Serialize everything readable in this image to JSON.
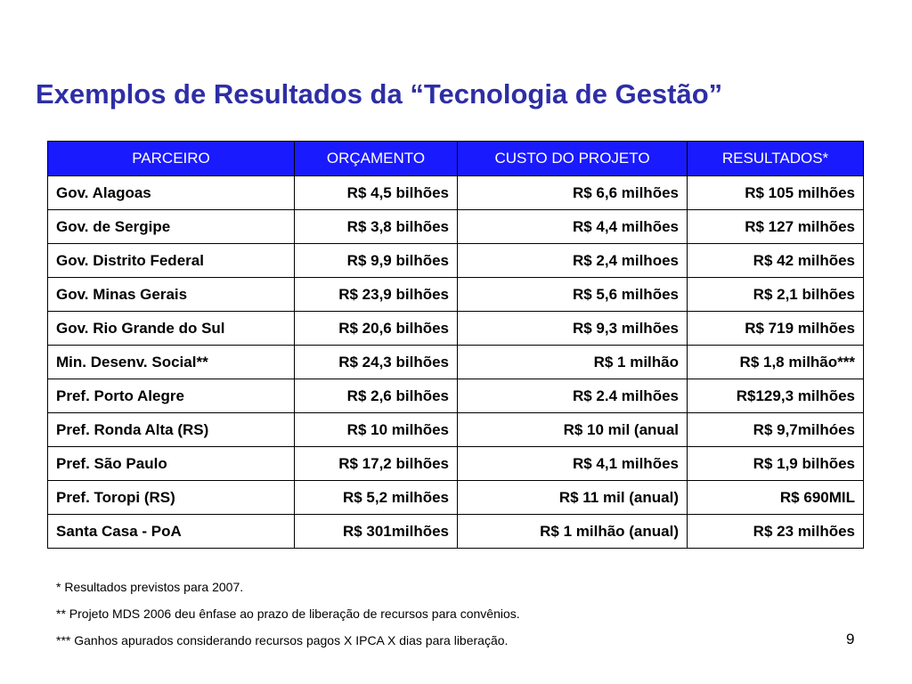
{
  "slide": {
    "title": "Exemplos de Resultados da “Tecnologia de Gestão”",
    "page_number": "9"
  },
  "table": {
    "headers": [
      "PARCEIRO",
      "ORÇAMENTO",
      "CUSTO DO PROJETO",
      "RESULTADOS*"
    ],
    "rows": [
      [
        "Gov. Alagoas",
        "R$ 4,5 bilhões",
        "R$ 6,6 milhões",
        "R$ 105 milhões"
      ],
      [
        "Gov. de Sergipe",
        "R$ 3,8 bilhões",
        "R$ 4,4 milhões",
        "R$ 127 milhões"
      ],
      [
        "Gov. Distrito Federal",
        "R$ 9,9 bilhões",
        "R$ 2,4 milhoes",
        "R$ 42 milhões"
      ],
      [
        "Gov. Minas Gerais",
        "R$ 23,9 bilhões",
        "R$ 5,6 milhões",
        "R$ 2,1 bilhões"
      ],
      [
        "Gov. Rio Grande do Sul",
        "R$ 20,6 bilhões",
        "R$ 9,3 milhões",
        "R$ 719 milhões"
      ],
      [
        "Min. Desenv. Social**",
        "R$ 24,3 bilhões",
        "R$ 1 milhão",
        "R$ 1,8 milhão***"
      ],
      [
        "Pref. Porto Alegre",
        "R$ 2,6 bilhões",
        "R$ 2.4 milhões",
        "R$129,3 milhões"
      ],
      [
        "Pref. Ronda Alta (RS)",
        "R$ 10 milhões",
        "R$ 10 mil (anual",
        "R$ 9,7milhóes"
      ],
      [
        "Pref. São Paulo",
        "R$ 17,2 bilhões",
        "R$ 4,1 milhões",
        "R$ 1,9 bilhões"
      ],
      [
        "Pref. Toropi (RS)",
        "R$ 5,2 milhões",
        "R$ 11 mil (anual)",
        "R$ 690MIL"
      ],
      [
        "Santa Casa - PoA",
        "R$ 301milhões",
        "R$ 1 milhão (anual)",
        "R$ 23 milhões"
      ]
    ]
  },
  "footnotes": [
    "* Resultados previstos para 2007.",
    "** Projeto MDS 2006 deu ênfase ao prazo de liberação de recursos para convênios.",
    "*** Ganhos apurados considerando recursos pagos X IPCA X dias para liberação."
  ],
  "colors": {
    "title": "#2e2ea6",
    "header_bg": "#1a1aff",
    "header_text": "#ffffff"
  }
}
